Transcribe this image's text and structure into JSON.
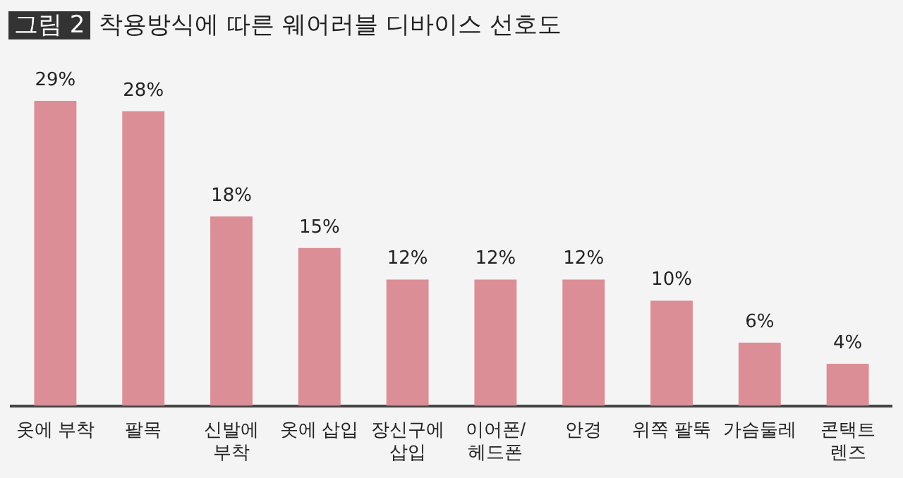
{
  "chart_data": {
    "type": "bar",
    "title": "그림 2 착용방식에 따른 웨어러블 디바이스 선호도",
    "categories": [
      "옷에 부착",
      "팔목",
      "신발에\n부착",
      "옷에 삽입",
      "장신구에\n삽입",
      "이어폰/\n헤드폰",
      "안경",
      "위쪽 팔뚝",
      "가슴둘레",
      "콘택트\n렌즈"
    ],
    "values": [
      29,
      28,
      18,
      15,
      12,
      12,
      12,
      10,
      6,
      4
    ],
    "value_labels": [
      "29%",
      "28%",
      "18%",
      "15%",
      "12%",
      "12%",
      "12%",
      "10%",
      "6%",
      "4%"
    ],
    "color": "#dc8e96",
    "grid": false,
    "legend": false
  }
}
